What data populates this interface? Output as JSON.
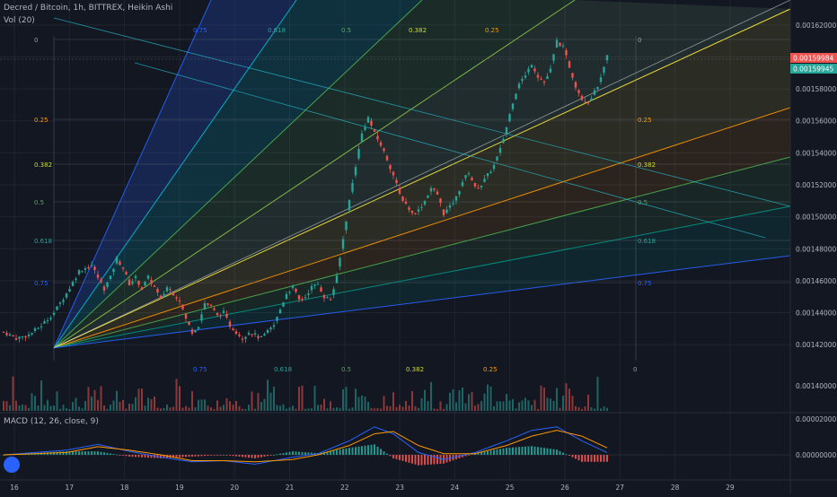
{
  "header": {
    "symbol_line": "Decred / Bitcoin, 1h, BITTREX, Heikin Ashi",
    "vol_label": "Vol (20)",
    "macd_label": "MACD (12, 26, close, 9)"
  },
  "colors": {
    "background": "#131722",
    "up": "#26a69a",
    "down": "#ef5350",
    "grid": "#1f2430",
    "axis_text": "#b2b5be",
    "macd_line": "#2962ff",
    "signal_line": "#ff9800"
  },
  "chart_data": {
    "type": "candlestick",
    "x_ticks": [
      "16",
      "17",
      "18",
      "19",
      "20",
      "21",
      "22",
      "23",
      "24",
      "25",
      "26",
      "27",
      "28",
      "29"
    ],
    "price_ticks": [
      "0.00162000",
      "0.00160000",
      "0.00158000",
      "0.00156000",
      "0.00154000",
      "0.00152000",
      "0.00150000",
      "0.00148000",
      "0.00146000",
      "0.00144000",
      "0.00142000"
    ],
    "volume_ticks": [
      "0.00140000"
    ],
    "macd_ticks": [
      "0.00002000",
      "0.00000000"
    ],
    "ylim": [
      0.00141,
      0.00163
    ],
    "last_price_red": "0.00159984",
    "last_price_green": "0.00159945",
    "fib_labels_left": [
      "0",
      "0.25",
      "0.382",
      "0.5",
      "0.618",
      "0.75"
    ],
    "fib_labels_right": [
      "0",
      "0.25",
      "0.382",
      "0.5",
      "0.618",
      "0.75"
    ],
    "fib_labels_top": [
      "0.75",
      "0.618",
      "0.5",
      "0.382",
      "0.25"
    ],
    "fib_labels_bottom": [
      "0.75",
      "0.618",
      "0.5",
      "0.382",
      "0.25",
      "0"
    ],
    "close_path": [
      [
        0,
        0.001428
      ],
      [
        4,
        0.001424
      ],
      [
        8,
        0.001426
      ],
      [
        12,
        0.001432
      ],
      [
        16,
        0.00144
      ],
      [
        20,
        0.001452
      ],
      [
        24,
        0.001466
      ],
      [
        28,
        0.00147
      ],
      [
        30,
        0.001462
      ],
      [
        32,
        0.001455
      ],
      [
        34,
        0.001462
      ],
      [
        36,
        0.001474
      ],
      [
        38,
        0.001468
      ],
      [
        40,
        0.001458
      ],
      [
        42,
        0.001462
      ],
      [
        44,
        0.001455
      ],
      [
        46,
        0.001462
      ],
      [
        48,
        0.001456
      ],
      [
        50,
        0.001448
      ],
      [
        52,
        0.001456
      ],
      [
        54,
        0.001452
      ],
      [
        56,
        0.001448
      ],
      [
        58,
        0.001436
      ],
      [
        60,
        0.001428
      ],
      [
        62,
        0.001432
      ],
      [
        64,
        0.001446
      ],
      [
        66,
        0.001444
      ],
      [
        68,
        0.001438
      ],
      [
        70,
        0.00144
      ],
      [
        72,
        0.001432
      ],
      [
        74,
        0.001428
      ],
      [
        76,
        0.001424
      ],
      [
        78,
        0.001428
      ],
      [
        80,
        0.001426
      ],
      [
        82,
        0.001424
      ],
      [
        84,
        0.001428
      ],
      [
        86,
        0.001432
      ],
      [
        88,
        0.001442
      ],
      [
        90,
        0.001452
      ],
      [
        92,
        0.001456
      ],
      [
        94,
        0.001448
      ],
      [
        96,
        0.00145
      ],
      [
        98,
        0.001456
      ],
      [
        100,
        0.001458
      ],
      [
        102,
        0.00145
      ],
      [
        104,
        0.001448
      ],
      [
        106,
        0.001462
      ],
      [
        108,
        0.001486
      ],
      [
        110,
        0.00151
      ],
      [
        112,
        0.001532
      ],
      [
        114,
        0.001552
      ],
      [
        116,
        0.001562
      ],
      [
        118,
        0.001552
      ],
      [
        120,
        0.001545
      ],
      [
        122,
        0.001536
      ],
      [
        124,
        0.001526
      ],
      [
        126,
        0.001514
      ],
      [
        128,
        0.001508
      ],
      [
        130,
        0.001502
      ],
      [
        132,
        0.001504
      ],
      [
        134,
        0.00151
      ],
      [
        136,
        0.001518
      ],
      [
        138,
        0.001514
      ],
      [
        140,
        0.001502
      ],
      [
        142,
        0.001506
      ],
      [
        144,
        0.001512
      ],
      [
        146,
        0.001522
      ],
      [
        148,
        0.001528
      ],
      [
        150,
        0.001518
      ],
      [
        152,
        0.00152
      ],
      [
        154,
        0.001526
      ],
      [
        156,
        0.001532
      ],
      [
        158,
        0.001542
      ],
      [
        160,
        0.001556
      ],
      [
        162,
        0.001572
      ],
      [
        164,
        0.001584
      ],
      [
        166,
        0.001588
      ],
      [
        168,
        0.001596
      ],
      [
        170,
        0.001588
      ],
      [
        172,
        0.001584
      ],
      [
        174,
        0.001592
      ],
      [
        176,
        0.00161
      ],
      [
        178,
        0.001606
      ],
      [
        180,
        0.001594
      ],
      [
        182,
        0.001582
      ],
      [
        184,
        0.001574
      ],
      [
        186,
        0.001572
      ],
      [
        188,
        0.001578
      ],
      [
        190,
        0.001586
      ],
      [
        192,
        0.0016
      ]
    ],
    "macd_path": [
      [
        0,
        0
      ],
      [
        20,
        4e-06
      ],
      [
        30,
        9e-06
      ],
      [
        40,
        3e-06
      ],
      [
        50,
        -2e-06
      ],
      [
        60,
        -6e-06
      ],
      [
        70,
        -5e-06
      ],
      [
        80,
        -8e-06
      ],
      [
        92,
        -2e-06
      ],
      [
        100,
        1e-06
      ],
      [
        110,
        1.2e-05
      ],
      [
        118,
        2.4e-05
      ],
      [
        124,
        1.8e-05
      ],
      [
        132,
        2e-06
      ],
      [
        140,
        -4e-06
      ],
      [
        150,
        2e-06
      ],
      [
        160,
        1.2e-05
      ],
      [
        168,
        2.1e-05
      ],
      [
        176,
        2.4e-05
      ],
      [
        184,
        1.2e-05
      ],
      [
        192,
        2e-06
      ]
    ],
    "signal_path": [
      [
        0,
        0
      ],
      [
        20,
        2e-06
      ],
      [
        30,
        7e-06
      ],
      [
        40,
        4e-06
      ],
      [
        50,
        0
      ],
      [
        60,
        -5e-06
      ],
      [
        70,
        -5e-06
      ],
      [
        80,
        -6e-06
      ],
      [
        92,
        -4e-06
      ],
      [
        100,
        0
      ],
      [
        110,
        8e-06
      ],
      [
        118,
        1.8e-05
      ],
      [
        124,
        2e-05
      ],
      [
        132,
        8e-06
      ],
      [
        140,
        1e-06
      ],
      [
        150,
        1e-06
      ],
      [
        160,
        8e-06
      ],
      [
        168,
        1.6e-05
      ],
      [
        176,
        2.1e-05
      ],
      [
        184,
        1.6e-05
      ],
      [
        192,
        6e-06
      ]
    ]
  }
}
